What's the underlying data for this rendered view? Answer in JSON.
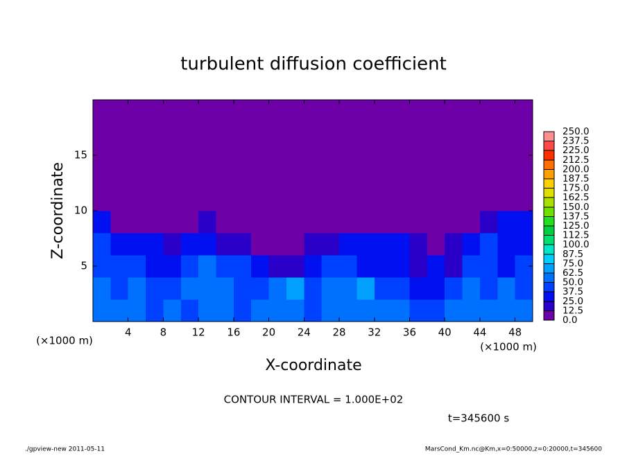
{
  "chart_data": {
    "type": "heatmap",
    "title": "turbulent diffusion coefficient",
    "x_label": "X-coordinate",
    "y_label": "Z-coordinate",
    "x_unit": "(×1000 m)",
    "y_unit": "(×1000 m)",
    "annotation": "CONTOUR INTERVAL = 1.000E+02",
    "time_label": "t=345600 s",
    "footer_left": "./gpview-new   2011-05-11",
    "footer_right": "MarsCond_Km.nc@Km,x=0:50000,z=0:20000,t=345600",
    "xlim": [
      0,
      50
    ],
    "ylim": [
      0,
      20
    ],
    "xticks": [
      4,
      8,
      12,
      16,
      20,
      24,
      28,
      32,
      36,
      40,
      44,
      48
    ],
    "yticks": [
      5,
      10,
      15
    ],
    "x_edges": [
      0,
      2,
      4,
      6,
      8,
      10,
      12,
      14,
      16,
      18,
      20,
      22,
      24,
      26,
      28,
      30,
      32,
      34,
      36,
      38,
      40,
      42,
      44,
      46,
      48,
      50
    ],
    "z_edges": [
      0,
      2,
      4,
      6,
      8,
      10,
      20
    ],
    "values": [
      [
        55,
        60,
        50,
        45,
        50,
        45,
        55,
        60,
        45,
        50,
        55,
        50,
        45,
        50,
        55,
        60,
        55,
        50,
        45,
        40,
        55,
        60,
        50,
        55,
        50
      ],
      [
        50,
        45,
        55,
        40,
        45,
        50,
        55,
        60,
        40,
        45,
        50,
        65,
        45,
        55,
        50,
        70,
        45,
        40,
        35,
        30,
        40,
        55,
        45,
        50,
        45
      ],
      [
        45,
        40,
        45,
        35,
        30,
        45,
        50,
        45,
        40,
        35,
        20,
        15,
        25,
        40,
        45,
        35,
        30,
        25,
        20,
        25,
        20,
        45,
        40,
        35,
        40
      ],
      [
        40,
        35,
        30,
        25,
        20,
        30,
        35,
        20,
        15,
        10,
        10,
        10,
        15,
        20,
        25,
        30,
        35,
        30,
        15,
        10,
        15,
        35,
        40,
        30,
        35
      ],
      [
        25,
        10,
        5,
        5,
        5,
        10,
        15,
        5,
        5,
        5,
        5,
        5,
        5,
        5,
        5,
        10,
        5,
        5,
        5,
        5,
        5,
        10,
        20,
        25,
        30
      ],
      [
        0,
        0,
        0,
        0,
        0,
        0,
        0,
        0,
        0,
        0,
        0,
        0,
        0,
        0,
        0,
        0,
        0,
        0,
        0,
        0,
        0,
        0,
        0,
        0,
        0
      ]
    ],
    "levels": [
      {
        "value": 0,
        "label": "0.0"
      },
      12.5,
      {
        "value": 25,
        "label": "25.0"
      },
      37.5,
      {
        "value": 50,
        "label": "50.0"
      },
      62.5,
      {
        "value": 75,
        "label": "75.0"
      },
      87.5,
      {
        "value": 100,
        "label": "100.0"
      },
      112.5,
      {
        "value": 125,
        "label": "125.0"
      },
      137.5,
      {
        "value": 150,
        "label": "150.0"
      },
      162.5,
      {
        "value": 175,
        "label": "175.0"
      },
      187.5,
      {
        "value": 200,
        "label": "200.0"
      },
      212.5,
      {
        "value": 225,
        "label": "225.0"
      },
      237.5,
      {
        "value": 250,
        "label": "250.0"
      }
    ],
    "colors": [
      "#6e00a8",
      "#2a00c8",
      "#0010f0",
      "#0040ff",
      "#0070ff",
      "#00a0ff",
      "#00d0ff",
      "#00e8c8",
      "#00e070",
      "#00d040",
      "#20e020",
      "#70e000",
      "#a8e000",
      "#e0e000",
      "#ffd000",
      "#ffa000",
      "#ff7000",
      "#ff3000",
      "#ff4848",
      "#ff9090"
    ]
  }
}
